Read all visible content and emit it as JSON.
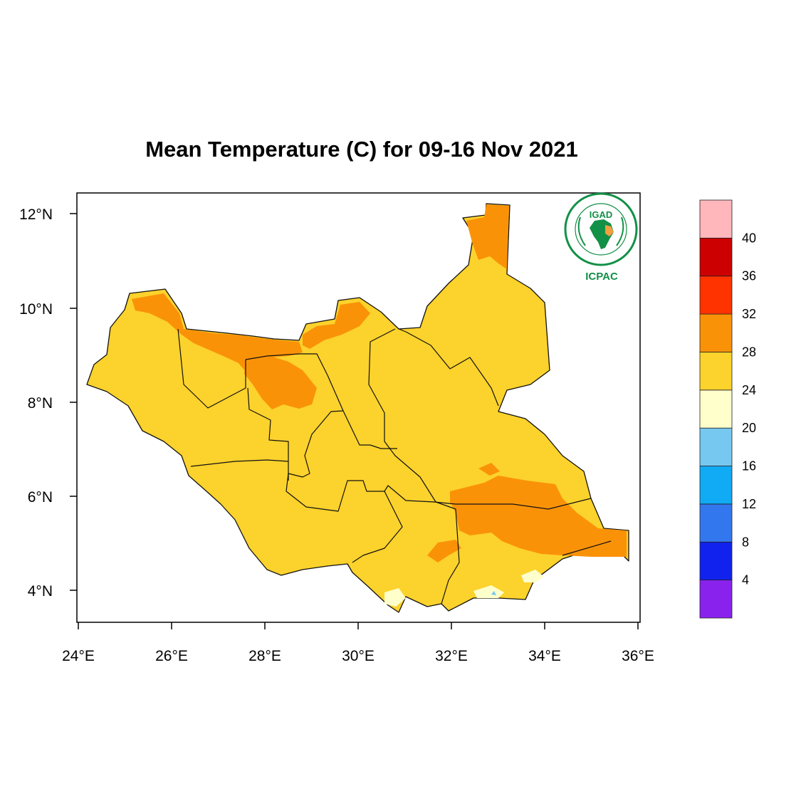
{
  "title": "Mean Temperature (C) for 09-16 Nov 2021",
  "map": {
    "lon_range": [
      24,
      36
    ],
    "lat_range": [
      3.4,
      12.45
    ],
    "lon_ticks": [
      "24°E",
      "26°E",
      "28°E",
      "30°E",
      "32°E",
      "34°E",
      "36°E"
    ],
    "lat_ticks": [
      "4°N",
      "6°N",
      "8°N",
      "10°N",
      "12°N"
    ],
    "lon_tick_values": [
      24,
      26,
      28,
      30,
      32,
      34,
      36
    ],
    "lat_tick_values": [
      4,
      6,
      8,
      10,
      12
    ]
  },
  "colorbar": {
    "labels": [
      "4",
      "8",
      "12",
      "16",
      "20",
      "24",
      "28",
      "32",
      "36",
      "40"
    ],
    "colors": [
      "#8a22ee",
      "#1122ee",
      "#3377ee",
      "#11aaf5",
      "#77c8f0",
      "#ffffcc",
      "#fcd22c",
      "#fa9208",
      "#ff3300",
      "#cc0000",
      "#ffb7bc"
    ]
  },
  "logo": {
    "name": "IGAD",
    "org": "ICPAC",
    "ring_text": "INTERGOVERNMENTAL AUTHORITY ON DEVELOPMENT"
  },
  "colors": {
    "fill_24_28": "#fcd22c",
    "fill_28_32": "#fa9208",
    "fill_20_24": "#ffffcc",
    "fill_16_20": "#77c8f0",
    "logo_green": "#139047",
    "logo_orange": "#f0a040"
  }
}
